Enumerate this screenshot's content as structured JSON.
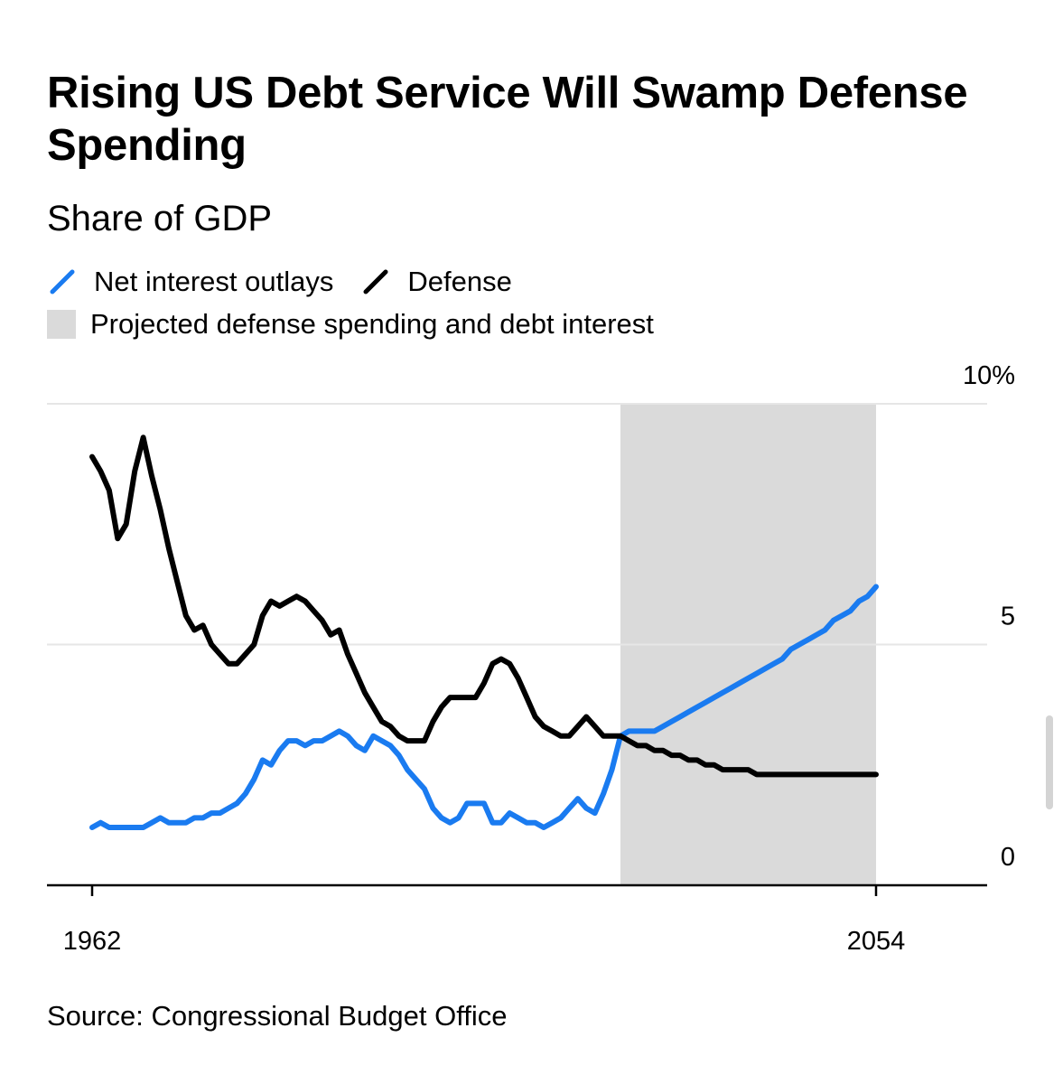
{
  "header": {
    "title": "Rising US Debt Service Will Swamp Defense Spending",
    "subtitle": "Share of GDP"
  },
  "legend": {
    "items": [
      {
        "label": "Net interest outlays",
        "color": "#1a7bf0"
      },
      {
        "label": "Defense",
        "color": "#000000"
      }
    ],
    "shade": {
      "label": "Projected defense spending and debt interest",
      "color": "#dadada"
    }
  },
  "footer": {
    "source": "Source: Congressional Budget Office"
  },
  "chart_data": {
    "type": "line",
    "title": "Rising US Debt Service Will Swamp Defense Spending",
    "subtitle": "Share of GDP",
    "xlabel": "",
    "ylabel": "",
    "xlim": [
      1962,
      2054
    ],
    "ylim": [
      0,
      10
    ],
    "x_tick_labels": [
      "1962",
      "2054"
    ],
    "y_tick_labels": [
      "0",
      "5",
      "10%"
    ],
    "y_axis_side": "right",
    "grid": true,
    "legend_position": "top-left",
    "shaded_region": {
      "label": "Projected defense spending and debt interest",
      "x_start": 2024,
      "x_end": 2054
    },
    "x": [
      1962,
      1963,
      1964,
      1965,
      1966,
      1967,
      1968,
      1969,
      1970,
      1971,
      1972,
      1973,
      1974,
      1975,
      1976,
      1977,
      1978,
      1979,
      1980,
      1981,
      1982,
      1983,
      1984,
      1985,
      1986,
      1987,
      1988,
      1989,
      1990,
      1991,
      1992,
      1993,
      1994,
      1995,
      1996,
      1997,
      1998,
      1999,
      2000,
      2001,
      2002,
      2003,
      2004,
      2005,
      2006,
      2007,
      2008,
      2009,
      2010,
      2011,
      2012,
      2013,
      2014,
      2015,
      2016,
      2017,
      2018,
      2019,
      2020,
      2021,
      2022,
      2023,
      2024,
      2025,
      2026,
      2027,
      2028,
      2029,
      2030,
      2031,
      2032,
      2033,
      2034,
      2035,
      2036,
      2037,
      2038,
      2039,
      2040,
      2041,
      2042,
      2043,
      2044,
      2045,
      2046,
      2047,
      2048,
      2049,
      2050,
      2051,
      2052,
      2053,
      2054
    ],
    "series": [
      {
        "name": "Net interest outlays",
        "color": "#1a7bf0",
        "values": [
          1.2,
          1.3,
          1.2,
          1.2,
          1.2,
          1.2,
          1.2,
          1.3,
          1.4,
          1.3,
          1.3,
          1.3,
          1.4,
          1.4,
          1.5,
          1.5,
          1.6,
          1.7,
          1.9,
          2.2,
          2.6,
          2.5,
          2.8,
          3.0,
          3.0,
          2.9,
          3.0,
          3.0,
          3.1,
          3.2,
          3.1,
          2.9,
          2.8,
          3.1,
          3.0,
          2.9,
          2.7,
          2.4,
          2.2,
          2.0,
          1.6,
          1.4,
          1.3,
          1.4,
          1.7,
          1.7,
          1.7,
          1.3,
          1.3,
          1.5,
          1.4,
          1.3,
          1.3,
          1.2,
          1.3,
          1.4,
          1.6,
          1.8,
          1.6,
          1.5,
          1.9,
          2.4,
          3.1,
          3.2,
          3.2,
          3.2,
          3.2,
          3.3,
          3.4,
          3.5,
          3.6,
          3.7,
          3.8,
          3.9,
          4.0,
          4.1,
          4.2,
          4.3,
          4.4,
          4.5,
          4.6,
          4.7,
          4.9,
          5.0,
          5.1,
          5.2,
          5.3,
          5.5,
          5.6,
          5.7,
          5.9,
          6.0,
          6.2
        ]
      },
      {
        "name": "Defense",
        "color": "#000000",
        "values": [
          8.9,
          8.6,
          8.2,
          7.2,
          7.5,
          8.6,
          9.3,
          8.5,
          7.8,
          7.0,
          6.3,
          5.6,
          5.3,
          5.4,
          5.0,
          4.8,
          4.6,
          4.6,
          4.8,
          5.0,
          5.6,
          5.9,
          5.8,
          5.9,
          6.0,
          5.9,
          5.7,
          5.5,
          5.2,
          5.3,
          4.8,
          4.4,
          4.0,
          3.7,
          3.4,
          3.3,
          3.1,
          3.0,
          3.0,
          3.0,
          3.4,
          3.7,
          3.9,
          3.9,
          3.9,
          3.9,
          4.2,
          4.6,
          4.7,
          4.6,
          4.3,
          3.9,
          3.5,
          3.3,
          3.2,
          3.1,
          3.1,
          3.3,
          3.5,
          3.3,
          3.1,
          3.1,
          3.1,
          3.0,
          2.9,
          2.9,
          2.8,
          2.8,
          2.7,
          2.7,
          2.6,
          2.6,
          2.5,
          2.5,
          2.4,
          2.4,
          2.4,
          2.4,
          2.3,
          2.3,
          2.3,
          2.3,
          2.3,
          2.3,
          2.3,
          2.3,
          2.3,
          2.3,
          2.3,
          2.3,
          2.3,
          2.3,
          2.3
        ]
      }
    ]
  }
}
